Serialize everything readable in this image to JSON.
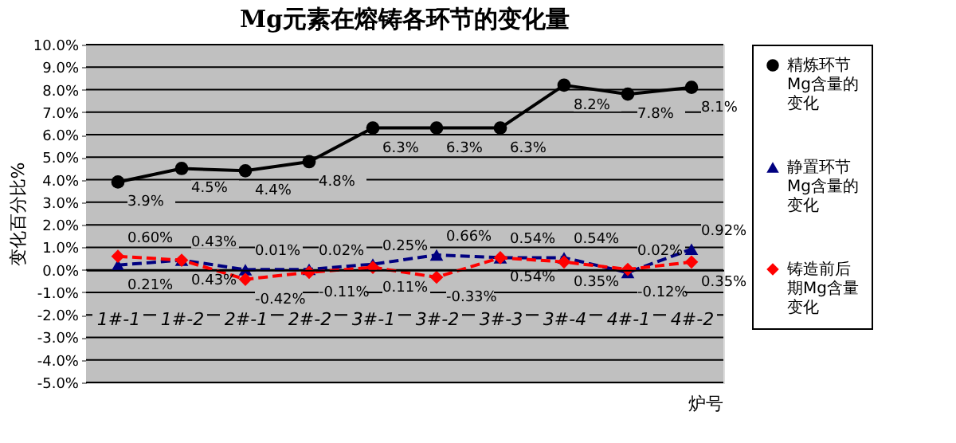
{
  "chart_data": {
    "type": "line",
    "title": "Mg元素在熔铸各环节的变化量",
    "ylabel": "变化百分比%",
    "xlabel": "炉号",
    "categories": [
      "1#-1",
      "1#-2",
      "2#-1",
      "2#-2",
      "3#-1",
      "3#-2",
      "3#-3",
      "3#-4",
      "4#-1",
      "4#-2"
    ],
    "series": [
      {
        "name": "精炼环节Mg含量的变化",
        "color": "#000000",
        "marker": "circle",
        "line_style": "solid",
        "values": [
          3.9,
          4.5,
          4.4,
          4.8,
          6.3,
          6.3,
          6.3,
          8.2,
          7.8,
          8.1
        ],
        "value_labels": [
          "3.9%",
          "4.5%",
          "4.4%",
          "4.8%",
          "6.3%",
          "6.3%",
          "6.3%",
          "8.2%",
          "7.8%",
          "8.1%"
        ]
      },
      {
        "name": "静置环节Mg含量的变化",
        "color": "#000080",
        "marker": "triangle",
        "line_style": "dashed",
        "values": [
          0.21,
          0.43,
          0.01,
          0.02,
          0.25,
          0.66,
          0.54,
          0.54,
          -0.12,
          0.92
        ],
        "value_labels": [
          "0.21%",
          "0.43%",
          "0.01%",
          "0.02%",
          "0.25%",
          "0.66%",
          "0.54%",
          "0.54%",
          "-0.12%",
          "0.92%"
        ]
      },
      {
        "name": "铸造前后期Mg含量变化",
        "color": "#ff0000",
        "marker": "diamond",
        "line_style": "dashed",
        "values": [
          0.6,
          0.43,
          -0.42,
          -0.11,
          0.11,
          -0.33,
          0.54,
          0.35,
          0.02,
          0.35
        ],
        "value_labels": [
          "0.60%",
          "0.43%",
          "-0.42%",
          "-0.11%",
          "0.11%",
          "-0.33%",
          "0.54%",
          "0.35%",
          "0.02%",
          "0.35%"
        ]
      }
    ],
    "ylim": [
      -5,
      10
    ],
    "yticks": [
      {
        "value": -5,
        "label": "-5.0%"
      },
      {
        "value": -4,
        "label": "-4.0%"
      },
      {
        "value": -3,
        "label": "-3.0%"
      },
      {
        "value": -2,
        "label": "-2.0%"
      },
      {
        "value": -1,
        "label": "-1.0%"
      },
      {
        "value": 0,
        "label": "0.0%"
      },
      {
        "value": 1,
        "label": "1.0%"
      },
      {
        "value": 2,
        "label": "2.0%"
      },
      {
        "value": 3,
        "label": "3.0%"
      },
      {
        "value": 4,
        "label": "4.0%"
      },
      {
        "value": 5,
        "label": "5.0%"
      },
      {
        "value": 6,
        "label": "6.0%"
      },
      {
        "value": 7,
        "label": "7.0%"
      },
      {
        "value": 8,
        "label": "8.0%"
      },
      {
        "value": 9,
        "label": "9.0%"
      },
      {
        "value": 10,
        "label": "10.0%"
      }
    ],
    "grid": "y",
    "legend": "right"
  }
}
